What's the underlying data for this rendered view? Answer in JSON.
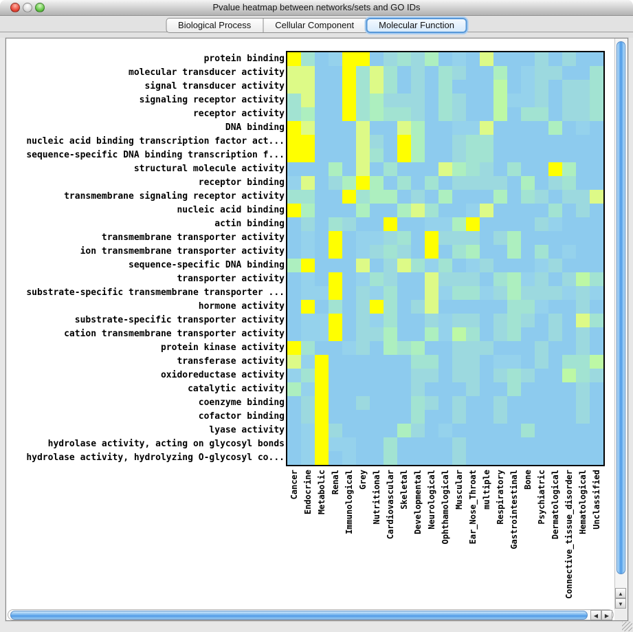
{
  "window": {
    "title": "Pvalue heatmap between networks/sets and GO IDs"
  },
  "tabs": [
    {
      "label": "Biological Process",
      "selected": false
    },
    {
      "label": "Cellular Component",
      "selected": false
    },
    {
      "label": "Molecular Function",
      "selected": true
    }
  ],
  "chart_data": {
    "type": "heatmap",
    "x_categories": [
      "Cancer",
      "Endocrine",
      "Metabolic",
      "Renal",
      "Immunological",
      "Grey",
      "Nutritional",
      "Cardiovascular",
      "Skeletal",
      "Developmental",
      "Neurological",
      "Ophthamological",
      "Muscular",
      "Ear_Nose_Throat",
      "multiple",
      "Respiratory",
      "Gastrointestinal",
      "Bone",
      "Psychiatric",
      "Dermatological",
      "Connective_tissue_disorder",
      "Hematological",
      "Unclassified"
    ],
    "y_categories": [
      "protein binding",
      "molecular transducer activity",
      "signal transducer activity",
      "signaling receptor activity",
      "receptor activity",
      "DNA binding",
      "nucleic acid binding transcription factor act...",
      "sequence-specific DNA binding transcription f...",
      "structural molecule activity",
      "receptor binding",
      "transmembrane signaling receptor activity",
      "nucleic acid binding",
      "actin binding",
      "transmembrane transporter activity",
      "ion transmembrane transporter activity",
      "sequence-specific DNA binding",
      "transporter activity",
      "substrate-specific transmembrane transporter ...",
      "hormone activity",
      "substrate-specific transporter activity",
      "cation transmembrane transporter activity",
      "protein kinase activity",
      "transferase activity",
      "oxidoreductase activity",
      "catalytic activity",
      "coenzyme binding",
      "cofactor binding",
      "lyase activity",
      "hydrolase activity, acting on glycosyl bonds",
      "hydrolase activity, hydrolyzing O-glycosyl co..."
    ],
    "palette": {
      "Y": "#ffff00",
      "y": "#ddfa87",
      "G": "#bdf8a5",
      "g": "#adefbf",
      "a": "#a2e3d2",
      "t": "#9cd9df",
      "b": "#95d2ec",
      "B": "#8dcbee"
    },
    "cells": [
      "YaBbYYBtatgBbByBBBtBtBB",
      "yyBBYayaBtBatBBgBbttBBa",
      "yyBBYayaBtBaBBBGBbtBtta",
      "ayBBYagtttBatBBGbbtBtta",
      "agBBYagaatBatBBGBaaBtta",
      "YyBBByBBygBBbbyBBBBgBbB",
      "YYBBBytBYgBBtaaBBBBBBBB",
      "YYBBByaBYgBBtaaBBBBBBBB",
      "BBBgByBaBBBygatBaBBYgBB",
      "byBtgYgBaBaBttttBgBtaBB",
      "aaBBYaggBtBgBBBgBatBtty",
      "YgBBBgBBgyaBBbyBBBBaBtB",
      "BtBatBBYBBbbgYBBBBtbBBB",
      "BbBYBbbtaBYtttBtgBBBBBB",
      "BbBYBbtatBYBagBBgBaBbBB",
      "gYBBByBtyabaBbtBBBbtBBB",
      "BbBYBbatBBytttBagbtBtGa",
      "BbbYBtbaBBybaabtgtttbtb",
      "BYBaBtYaBtyBBBBBaabBBtB",
      "BbbYBtbaBBtbttBtatBtBya",
      "BbbYBttgBBgbGaBtaBBtBtB",
      "YaBBbtBgagBBtttBBBtBBtB",
      "ybYBBBBBBaaBttBbbBtBaaG",
      "baYBBBBBBttBttBtatBBGat",
      "gbYBBBBBBtBBBtBBaBBBBtB",
      "BtYBBtBBBatBtBBtBBBBBtB",
      "BtYBBBBBBaBBtBBtBBBBBtB",
      "BbYtBBBBgtBbBBBBBaBBBBB",
      "BbYbbBBaBBBBtBBBBBBBBBB",
      "BbYBbBBaBBBBtBBBBBBBBBB"
    ]
  },
  "scrollbars": {
    "up_arrow": "▲",
    "down_arrow": "▼",
    "left_arrow": "◀",
    "right_arrow": "▶"
  }
}
